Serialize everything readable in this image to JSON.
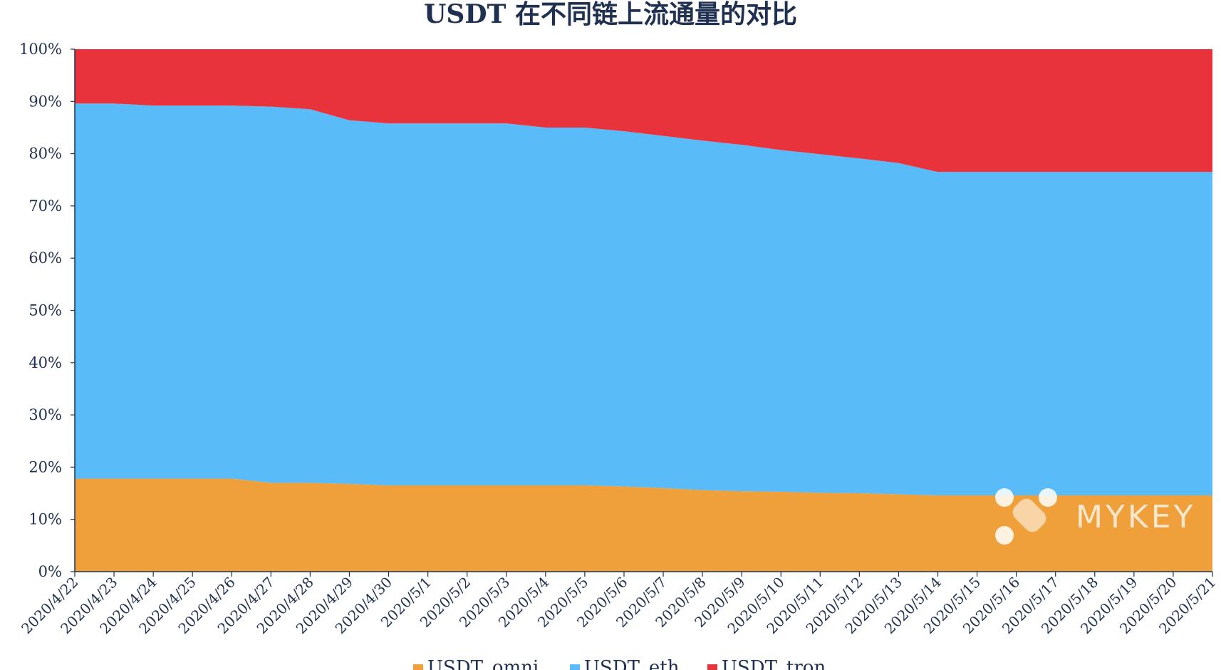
{
  "chart_data": {
    "type": "area",
    "stacked": "percent",
    "title": "USDT 在不同链上流通量的对比",
    "xlabel": "",
    "ylabel": "",
    "ylim": [
      0,
      100
    ],
    "y_ticks": [
      "0%",
      "10%",
      "20%",
      "30%",
      "40%",
      "50%",
      "60%",
      "70%",
      "80%",
      "90%",
      "100%"
    ],
    "categories": [
      "2020/4/22",
      "2020/4/23",
      "2020/4/24",
      "2020/4/25",
      "2020/4/26",
      "2020/4/27",
      "2020/4/28",
      "2020/4/29",
      "2020/4/30",
      "2020/5/1",
      "2020/5/2",
      "2020/5/3",
      "2020/5/4",
      "2020/5/5",
      "2020/5/6",
      "2020/5/7",
      "2020/5/8",
      "2020/5/9",
      "2020/5/10",
      "2020/5/11",
      "2020/5/12",
      "2020/5/13",
      "2020/5/14",
      "2020/5/15",
      "2020/5/16",
      "2020/5/17",
      "2020/5/18",
      "2020/5/19",
      "2020/5/20",
      "2020/5/21"
    ],
    "series": [
      {
        "name": "USDT_omni",
        "color": "#f0a03a",
        "values": [
          17.8,
          17.8,
          17.8,
          17.8,
          17.8,
          17.0,
          17.0,
          16.8,
          16.5,
          16.5,
          16.5,
          16.5,
          16.5,
          16.5,
          16.3,
          16.0,
          15.6,
          15.4,
          15.3,
          15.1,
          15.0,
          14.8,
          14.6,
          14.6,
          14.6,
          14.6,
          14.6,
          14.6,
          14.6,
          14.6
        ]
      },
      {
        "name": "USDT_eth",
        "color": "#59bbf7",
        "values": [
          71.8,
          71.8,
          71.4,
          71.4,
          71.4,
          72.0,
          71.5,
          69.6,
          69.3,
          69.3,
          69.3,
          69.3,
          68.5,
          68.5,
          68.0,
          67.4,
          66.9,
          66.3,
          65.4,
          64.8,
          64.1,
          63.4,
          61.9,
          61.9,
          61.9,
          61.9,
          61.9,
          61.9,
          61.9,
          61.9
        ]
      },
      {
        "name": "USDT_tron",
        "color": "#e8323c",
        "values": [
          10.4,
          10.4,
          10.8,
          10.8,
          10.8,
          11.0,
          11.5,
          13.6,
          14.2,
          14.2,
          14.2,
          14.2,
          15.0,
          15.0,
          15.7,
          16.6,
          17.5,
          18.3,
          19.3,
          20.1,
          20.9,
          21.8,
          23.5,
          23.5,
          23.5,
          23.5,
          23.5,
          23.5,
          23.5,
          23.5
        ]
      }
    ],
    "legend": {
      "position": "bottom"
    },
    "grid": false
  },
  "watermark": {
    "text": "MYKEY"
  }
}
